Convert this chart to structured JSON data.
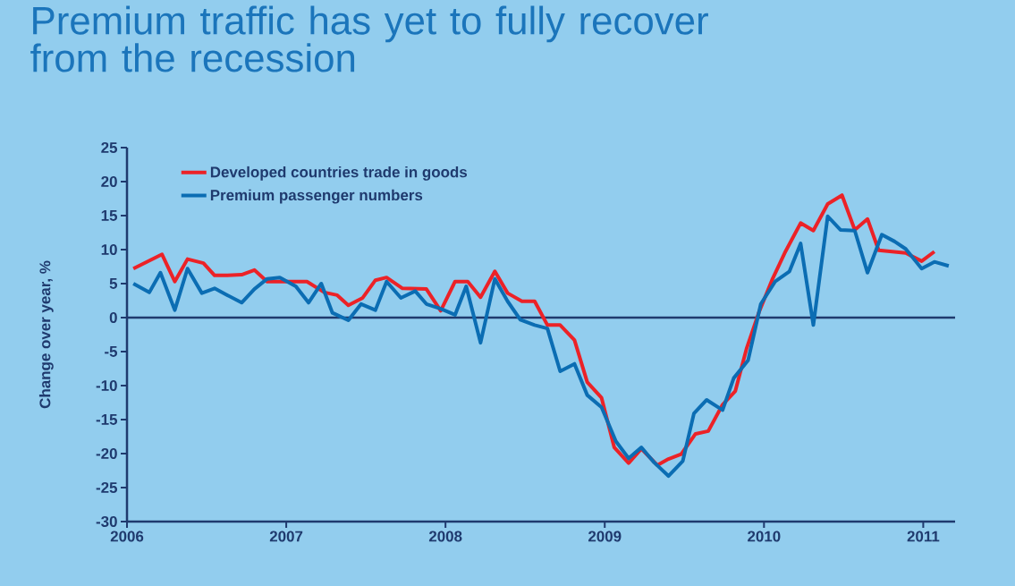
{
  "chart_data": {
    "type": "line",
    "title": "Premium traffic has yet to fully recover from the recession",
    "ylabel": "Change over year, %",
    "xlim": [
      2006,
      2011.2
    ],
    "xticks": [
      2006,
      2007,
      2008,
      2009,
      2010,
      2011
    ],
    "ylim": [
      -30,
      25
    ],
    "yticks": [
      -30,
      -25,
      -20,
      -15,
      -10,
      -5,
      0,
      5,
      10,
      15,
      20,
      25
    ],
    "grid": false,
    "legend": "top left",
    "marker": "none",
    "line_style": "solid",
    "ref_lines": [
      {
        "axis": "y",
        "value": 0,
        "color": "#1f3a6e"
      }
    ],
    "series": [
      {
        "name": "Developed countries trade in goods",
        "color": "#ec2227",
        "x": [
          2006.04,
          2006.22,
          2006.3,
          2006.38,
          2006.48,
          2006.55,
          2006.63,
          2006.72,
          2006.8,
          2006.88,
          2007.13,
          2007.24,
          2007.32,
          2007.39,
          2007.48,
          2007.56,
          2007.63,
          2007.73,
          2007.88,
          2007.97,
          2008.06,
          2008.14,
          2008.22,
          2008.31,
          2008.39,
          2008.48,
          2008.56,
          2008.64,
          2008.72,
          2008.81,
          2008.89,
          2008.98,
          2009.06,
          2009.15,
          2009.23,
          2009.33,
          2009.4,
          2009.48,
          2009.57,
          2009.65,
          2009.74,
          2009.82,
          2009.89,
          2009.97,
          2010.05,
          2010.13,
          2010.23,
          2010.31,
          2010.4,
          2010.49,
          2010.57,
          2010.65,
          2010.72,
          2010.89,
          2010.99,
          2011.07
        ],
        "values": [
          7.2,
          9.3,
          5.3,
          8.6,
          8.0,
          6.2,
          6.2,
          6.3,
          7.0,
          5.3,
          5.3,
          3.7,
          3.3,
          1.8,
          2.9,
          5.5,
          5.9,
          4.3,
          4.2,
          1.0,
          5.3,
          5.3,
          3.0,
          6.8,
          3.6,
          2.4,
          2.4,
          -1.1,
          -1.1,
          -3.3,
          -9.5,
          -11.8,
          -19.1,
          -21.4,
          -19.3,
          -21.7,
          -20.8,
          -20.1,
          -17.1,
          -16.7,
          -12.8,
          -10.8,
          -4.6,
          0.9,
          5.5,
          9.5,
          13.9,
          12.8,
          16.7,
          18.0,
          12.9,
          14.5,
          9.9,
          9.5,
          8.3,
          9.7
        ]
      },
      {
        "name": "Premium passenger numbers",
        "color": "#0b6db3",
        "x": [
          2006.04,
          2006.14,
          2006.21,
          2006.3,
          2006.38,
          2006.47,
          2006.55,
          2006.63,
          2006.72,
          2006.8,
          2006.88,
          2006.96,
          2007.06,
          2007.14,
          2007.22,
          2007.29,
          2007.39,
          2007.47,
          2007.56,
          2007.63,
          2007.72,
          2007.81,
          2007.88,
          2007.97,
          2008.06,
          2008.13,
          2008.22,
          2008.31,
          2008.39,
          2008.47,
          2008.56,
          2008.64,
          2008.72,
          2008.81,
          2008.89,
          2008.98,
          2009.07,
          2009.15,
          2009.23,
          2009.31,
          2009.4,
          2009.49,
          2009.56,
          2009.64,
          2009.74,
          2009.81,
          2009.9,
          2009.98,
          2010.07,
          2010.16,
          2010.23,
          2010.31,
          2010.4,
          2010.48,
          2010.57,
          2010.65,
          2010.74,
          2010.82,
          2010.89,
          2010.99,
          2011.07,
          2011.16
        ],
        "values": [
          5.0,
          3.7,
          6.6,
          1.1,
          7.2,
          3.6,
          4.3,
          3.3,
          2.2,
          4.2,
          5.7,
          5.9,
          4.6,
          2.2,
          5.0,
          0.7,
          -0.4,
          2.0,
          1.1,
          5.3,
          2.9,
          3.9,
          2.0,
          1.3,
          0.4,
          4.6,
          -3.7,
          5.7,
          2.4,
          -0.3,
          -1.1,
          -1.6,
          -7.9,
          -6.8,
          -11.4,
          -13.2,
          -18.2,
          -20.7,
          -19.1,
          -21.3,
          -23.3,
          -21.1,
          -14.1,
          -12.1,
          -13.6,
          -8.9,
          -6.3,
          2.0,
          5.3,
          6.8,
          10.9,
          -1.1,
          14.9,
          12.9,
          12.8,
          6.6,
          12.2,
          11.2,
          10.1,
          7.2,
          8.2,
          7.6
        ]
      }
    ]
  }
}
